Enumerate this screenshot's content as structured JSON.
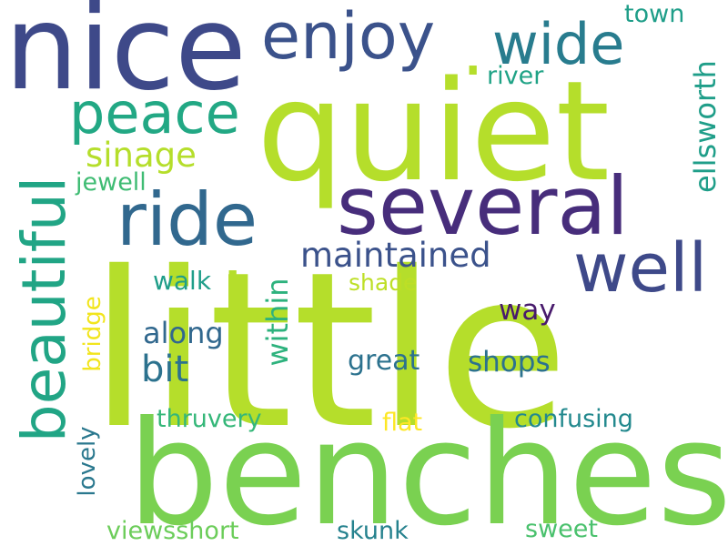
{
  "words": [
    {
      "text": "little",
      "color": "#b5de2b"
    },
    {
      "text": "quiet",
      "color": "#b5de2b"
    },
    {
      "text": "benches",
      "color": "#7ad151"
    },
    {
      "text": "nice",
      "color": "#3e4989"
    },
    {
      "text": "beautiful",
      "color": "#21a585"
    },
    {
      "text": "several",
      "color": "#472d7b"
    },
    {
      "text": "enjoy",
      "color": "#3b528b"
    },
    {
      "text": "ride",
      "color": "#31688e"
    },
    {
      "text": "wide",
      "color": "#287c8e"
    },
    {
      "text": "well",
      "color": "#3e4989"
    },
    {
      "text": "peace",
      "color": "#22a884"
    },
    {
      "text": "maintained",
      "color": "#3b528b"
    },
    {
      "text": "ellsworth",
      "color": "#1f9e89"
    },
    {
      "text": "within",
      "color": "#2db27d"
    },
    {
      "text": "sinage",
      "color": "#b5de2b"
    },
    {
      "text": "bit",
      "color": "#2c728e"
    },
    {
      "text": "along",
      "color": "#31688e"
    },
    {
      "text": "shops",
      "color": "#2c728e"
    },
    {
      "text": "great",
      "color": "#2c728e"
    },
    {
      "text": "way",
      "color": "#481a6c"
    },
    {
      "text": "walk",
      "color": "#1f9e89"
    },
    {
      "text": "shade",
      "color": "#bddf26"
    },
    {
      "text": "confusing",
      "color": "#23898e"
    },
    {
      "text": "thruvery",
      "color": "#35b779"
    },
    {
      "text": "flat",
      "color": "#fde725"
    },
    {
      "text": "lovely",
      "color": "#2a788e"
    },
    {
      "text": "bridge",
      "color": "#f2e51d"
    },
    {
      "text": "jewell",
      "color": "#3fbc73"
    },
    {
      "text": "river",
      "color": "#20a386"
    },
    {
      "text": "town",
      "color": "#1f9e89"
    },
    {
      "text": "viewsshort",
      "color": "#6ccd5a"
    },
    {
      "text": "skunk",
      "color": "#26828e"
    },
    {
      "text": "sweet",
      "color": "#4ac16d"
    },
    {
      "text": ".",
      "color": "#b5de2b"
    },
    {
      "text": ".",
      "color": "#b5de2b"
    }
  ]
}
